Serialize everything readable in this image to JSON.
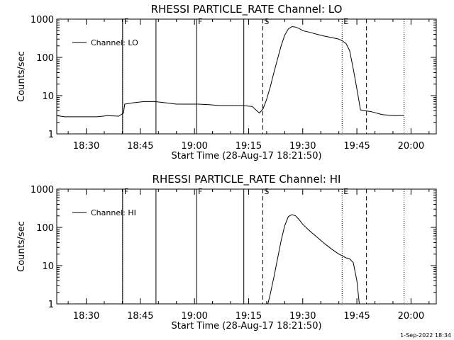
{
  "chart_data": [
    {
      "type": "line",
      "title": "RHESSI PARTICLE_RATE Channel: LO",
      "xlabel": "Start Time (28-Aug-17 18:21:50)",
      "ylabel": "Counts/sec",
      "y_scale": "log",
      "ylim": [
        1,
        1000
      ],
      "xlim": [
        "18:21:50",
        "20:07:00"
      ],
      "x_tick_labels": [
        "18:30",
        "18:45",
        "19:00",
        "19:15",
        "19:30",
        "19:45",
        "20:00"
      ],
      "y_tick_labels": [
        "1",
        "10",
        "100",
        "1000"
      ],
      "legend": {
        "position": "top-left",
        "entries": [
          "Channel: LO"
        ]
      },
      "series": [
        {
          "name": "Channel: LO",
          "x": [
            "18:21:50",
            "18:24:00",
            "18:27:00",
            "18:30:00",
            "18:33:00",
            "18:36:00",
            "18:39:00",
            "18:40:20",
            "18:40:40",
            "18:43:00",
            "18:46:00",
            "18:49:00",
            "18:52:00",
            "18:55:00",
            "18:58:00",
            "19:01:00",
            "19:04:00",
            "19:07:00",
            "19:10:00",
            "19:13:00",
            "19:16:00",
            "19:18:00",
            "19:19:00",
            "19:20:00",
            "19:21:00",
            "19:22:00",
            "19:23:00",
            "19:24:00",
            "19:25:00",
            "19:26:00",
            "19:27:00",
            "19:28:00",
            "19:29:00",
            "19:30:00",
            "19:32:00",
            "19:34:00",
            "19:36:00",
            "19:38:00",
            "19:40:00",
            "19:41:00",
            "19:42:00",
            "19:43:00",
            "19:44:00",
            "19:45:00",
            "19:46:00",
            "19:49:00",
            "19:52:00",
            "19:55:00",
            "19:58:00"
          ],
          "y": [
            3.0,
            2.8,
            2.8,
            2.8,
            2.8,
            3.0,
            2.9,
            3.5,
            6.0,
            6.5,
            7.0,
            7.0,
            6.5,
            6.0,
            6.0,
            6.0,
            5.8,
            5.5,
            5.5,
            5.5,
            5.2,
            3.5,
            4.5,
            8.0,
            17,
            40,
            90,
            200,
            380,
            550,
            640,
            620,
            570,
            500,
            450,
            400,
            360,
            330,
            300,
            270,
            230,
            150,
            50,
            15,
            4.2,
            3.8,
            3.2,
            3.0,
            3.0
          ]
        }
      ],
      "annotations": [
        {
          "type": "vline_solid",
          "x": "18:40:05",
          "label": "F"
        },
        {
          "type": "vline_dotted",
          "x": "18:40:05"
        },
        {
          "type": "vline_solid",
          "x": "18:49:20"
        },
        {
          "type": "vline_solid",
          "x": "19:00:35",
          "label": "F"
        },
        {
          "type": "vline_solid",
          "x": "19:13:40"
        },
        {
          "type": "vline_dashed",
          "x": "19:18:55",
          "label": "S"
        },
        {
          "type": "vline_dotted",
          "x": "19:40:55",
          "label": "E"
        },
        {
          "type": "vline_dashed",
          "x": "19:47:40"
        },
        {
          "type": "vline_dotted",
          "x": "19:58:05"
        }
      ]
    },
    {
      "type": "line",
      "title": "RHESSI PARTICLE_RATE Channel: HI",
      "xlabel": "Start Time (28-Aug-17 18:21:50)",
      "ylabel": "Counts/sec",
      "y_scale": "log",
      "ylim": [
        1,
        1000
      ],
      "xlim": [
        "18:21:50",
        "20:07:00"
      ],
      "x_tick_labels": [
        "18:30",
        "18:45",
        "19:00",
        "19:15",
        "19:30",
        "19:45",
        "20:00"
      ],
      "y_tick_labels": [
        "1",
        "10",
        "100",
        "1000"
      ],
      "legend": {
        "position": "top-left",
        "entries": [
          "Channel: HI"
        ]
      },
      "series": [
        {
          "name": "Channel: HI",
          "x": [
            "19:20:20",
            "19:21:00",
            "19:22:00",
            "19:23:00",
            "19:24:00",
            "19:25:00",
            "19:26:00",
            "19:27:00",
            "19:28:00",
            "19:29:00",
            "19:30:00",
            "19:32:00",
            "19:34:00",
            "19:36:00",
            "19:38:00",
            "19:40:00",
            "19:41:00",
            "19:42:00",
            "19:43:00",
            "19:44:00",
            "19:45:00",
            "19:45:40"
          ],
          "y": [
            1.0,
            1.8,
            5,
            15,
            45,
            110,
            190,
            215,
            200,
            160,
            120,
            80,
            55,
            38,
            27,
            20,
            18,
            16,
            15,
            12,
            4,
            1.0
          ]
        }
      ],
      "annotations": [
        {
          "type": "vline_solid",
          "x": "18:40:05",
          "label": "F"
        },
        {
          "type": "vline_dotted",
          "x": "18:40:05"
        },
        {
          "type": "vline_solid",
          "x": "18:49:20"
        },
        {
          "type": "vline_solid",
          "x": "19:00:35",
          "label": "F"
        },
        {
          "type": "vline_solid",
          "x": "19:13:40"
        },
        {
          "type": "vline_dashed",
          "x": "19:18:55",
          "label": "S"
        },
        {
          "type": "vline_dotted",
          "x": "19:40:55",
          "label": "E"
        },
        {
          "type": "vline_dashed",
          "x": "19:47:40"
        },
        {
          "type": "vline_dotted",
          "x": "19:58:05"
        }
      ]
    }
  ],
  "footer": {
    "timestamp": "1-Sep-2022 18:34"
  }
}
